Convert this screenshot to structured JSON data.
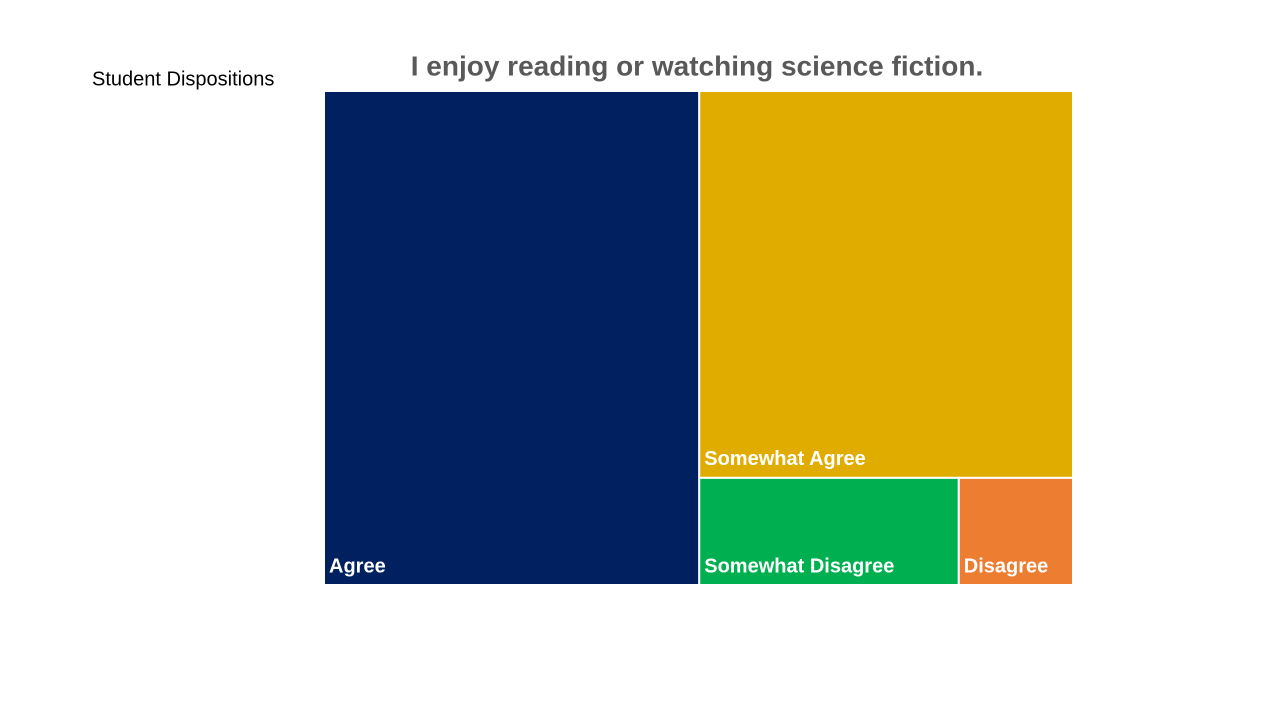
{
  "slide": {
    "label": "Student Dispositions"
  },
  "chart_data": {
    "type": "treemap",
    "title": "I enjoy reading or watching science fiction.",
    "categories": [
      "Agree",
      "Somewhat Agree",
      "Somewhat Disagree",
      "Disagree"
    ],
    "values": [
      50,
      39,
      7.5,
      3.3
    ],
    "colors": [
      "#002060",
      "#e0ac00",
      "#00b050",
      "#ed7d31"
    ]
  }
}
